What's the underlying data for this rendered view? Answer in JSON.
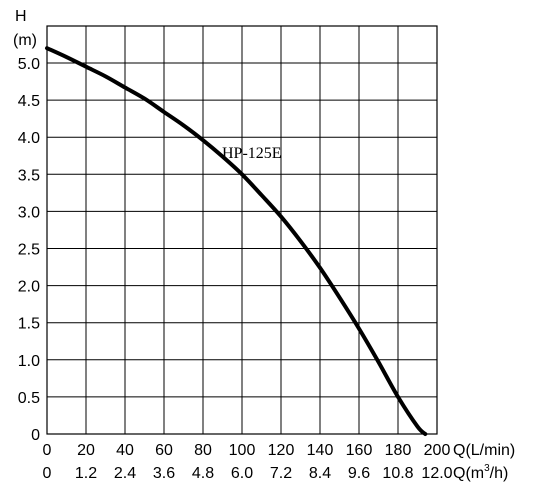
{
  "chart_data": {
    "type": "line",
    "title": "",
    "ylabel_line1": "H",
    "ylabel_line2": "(m)",
    "xlabel_primary": "Q(L/min)",
    "xlabel_secondary_prefix": "Q(m",
    "xlabel_secondary_sup": "3",
    "xlabel_secondary_suffix": "/h)",
    "xlim": [
      0,
      200
    ],
    "ylim": [
      0,
      5.0
    ],
    "grid": true,
    "x_ticks": [
      0,
      20,
      40,
      60,
      80,
      100,
      120,
      140,
      160,
      180,
      200
    ],
    "x_tick_labels": [
      "0",
      "20",
      "40",
      "60",
      "80",
      "100",
      "120",
      "140",
      "160",
      "180",
      "200"
    ],
    "x_secondary_tick_labels": [
      "0",
      "1.2",
      "2.4",
      "3.6",
      "4.8",
      "6.0",
      "7.2",
      "8.4",
      "9.6",
      "10.8",
      "12.0"
    ],
    "y_ticks": [
      0,
      0.5,
      1.0,
      1.5,
      2.0,
      2.5,
      3.0,
      3.5,
      4.0,
      4.5,
      5.0
    ],
    "y_tick_labels": [
      "0",
      "0.5",
      "1.0",
      "1.5",
      "2.0",
      "2.5",
      "3.0",
      "3.5",
      "4.0",
      "4.5",
      "5.0"
    ],
    "series": [
      {
        "name": "HP-125E",
        "x": [
          0,
          10,
          20,
          30,
          40,
          50,
          60,
          70,
          80,
          90,
          100,
          110,
          120,
          130,
          140,
          150,
          160,
          170,
          180,
          190,
          194
        ],
        "y": [
          5.2,
          5.08,
          4.95,
          4.82,
          4.67,
          4.52,
          4.34,
          4.16,
          3.96,
          3.74,
          3.5,
          3.22,
          2.93,
          2.6,
          2.24,
          1.84,
          1.42,
          0.97,
          0.5,
          0.1,
          0.0
        ]
      }
    ]
  }
}
